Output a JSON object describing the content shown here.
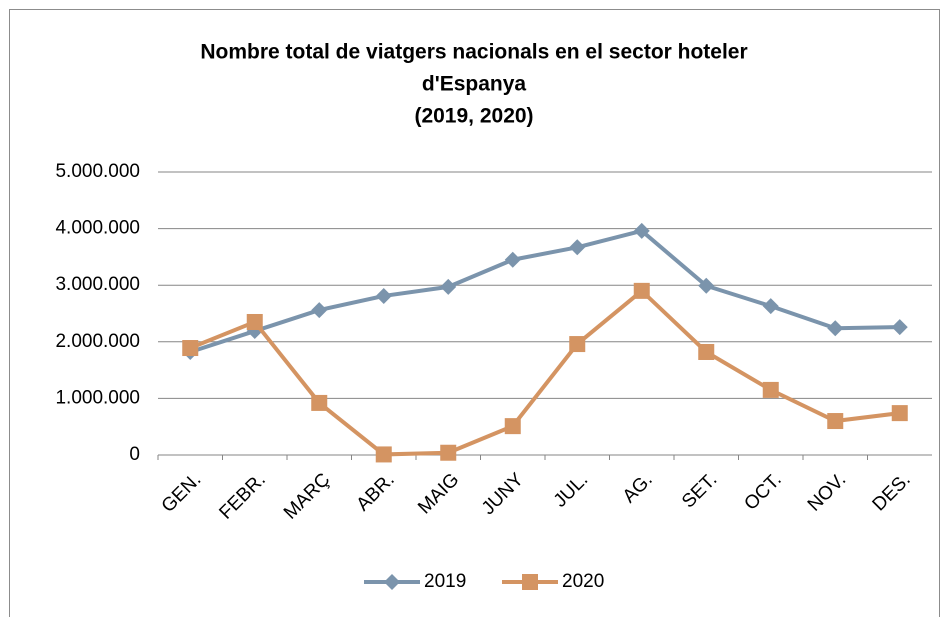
{
  "chart_data": {
    "type": "line",
    "title": [
      "Nombre total de viatgers nacionals en el sector hoteler",
      "d'Espanya",
      "(2019, 2020)"
    ],
    "categories": [
      "GEN.",
      "FEBR.",
      "MARÇ",
      "ABR.",
      "MAIG",
      "JUNY",
      "JUL.",
      "AG.",
      "SET.",
      "OCT.",
      "NOV.",
      "DES."
    ],
    "series": [
      {
        "name": "2019",
        "color": "#7b94ac",
        "marker": "diamond",
        "values": [
          1820000,
          2190000,
          2560000,
          2810000,
          2970000,
          3450000,
          3670000,
          3960000,
          2990000,
          2630000,
          2240000,
          2260000
        ]
      },
      {
        "name": "2020",
        "color": "#d49462",
        "marker": "square",
        "values": [
          1890000,
          2350000,
          920000,
          10000,
          40000,
          510000,
          1960000,
          2900000,
          1820000,
          1150000,
          600000,
          740000
        ]
      }
    ],
    "ylim": [
      0,
      5000000
    ],
    "yticks": [
      0,
      {
        "value": 1000000,
        "label": "1.000.000"
      },
      {
        "value": 2000000,
        "label": "2.000.000"
      },
      {
        "value": 3000000,
        "label": "3.000.000"
      },
      {
        "value": 4000000,
        "label": "4.000.000"
      },
      {
        "value": 5000000,
        "label": "5.000.000"
      }
    ],
    "grid": true,
    "legend": "bottom"
  }
}
